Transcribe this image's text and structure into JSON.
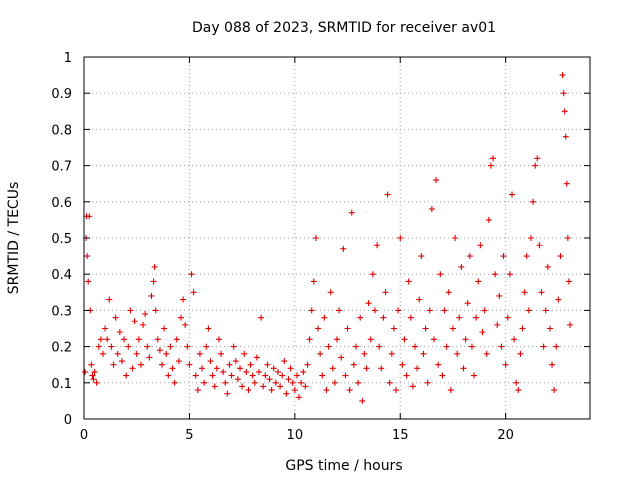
{
  "chart_data": {
    "type": "scatter",
    "title": "Day 088 of 2023, SRMTID for receiver av01",
    "xlabel": "GPS time / hours",
    "ylabel": "SRMTID / TECUs",
    "xlim": [
      0,
      24
    ],
    "ylim": [
      0,
      1
    ],
    "x_ticks": [
      0,
      5,
      10,
      15,
      20
    ],
    "y_ticks": [
      0,
      0.1,
      0.2,
      0.3,
      0.4,
      0.5,
      0.6,
      0.7,
      0.8,
      0.9,
      1
    ],
    "x_tick_labels": [
      "0",
      "5",
      "10",
      "15",
      "20"
    ],
    "y_tick_labels": [
      "0",
      "0.1",
      "0.2",
      "0.3",
      "0.4",
      "0.5",
      "0.6",
      "0.7",
      "0.8",
      "0.9",
      "1"
    ],
    "grid": true,
    "marker": "plus",
    "color": "#e00000",
    "series": [
      {
        "name": "SRMTID",
        "points": [
          [
            0.05,
            0.13
          ],
          [
            0.1,
            0.5
          ],
          [
            0.12,
            0.56
          ],
          [
            0.15,
            0.45
          ],
          [
            0.2,
            0.38
          ],
          [
            0.25,
            0.56
          ],
          [
            0.3,
            0.3
          ],
          [
            0.35,
            0.15
          ],
          [
            0.4,
            0.12
          ],
          [
            0.45,
            0.11
          ],
          [
            0.5,
            0.13
          ],
          [
            0.6,
            0.1
          ],
          [
            0.7,
            0.2
          ],
          [
            0.8,
            0.22
          ],
          [
            0.9,
            0.18
          ],
          [
            1.0,
            0.25
          ],
          [
            1.1,
            0.22
          ],
          [
            1.2,
            0.33
          ],
          [
            1.3,
            0.2
          ],
          [
            1.4,
            0.15
          ],
          [
            1.5,
            0.28
          ],
          [
            1.6,
            0.18
          ],
          [
            1.7,
            0.24
          ],
          [
            1.8,
            0.16
          ],
          [
            1.9,
            0.22
          ],
          [
            2.0,
            0.12
          ],
          [
            2.1,
            0.2
          ],
          [
            2.2,
            0.3
          ],
          [
            2.3,
            0.14
          ],
          [
            2.4,
            0.27
          ],
          [
            2.5,
            0.18
          ],
          [
            2.6,
            0.22
          ],
          [
            2.7,
            0.15
          ],
          [
            2.8,
            0.26
          ],
          [
            2.9,
            0.29
          ],
          [
            3.0,
            0.2
          ],
          [
            3.1,
            0.17
          ],
          [
            3.2,
            0.34
          ],
          [
            3.3,
            0.38
          ],
          [
            3.35,
            0.42
          ],
          [
            3.4,
            0.3
          ],
          [
            3.5,
            0.22
          ],
          [
            3.6,
            0.19
          ],
          [
            3.7,
            0.15
          ],
          [
            3.8,
            0.25
          ],
          [
            3.9,
            0.18
          ],
          [
            4.0,
            0.12
          ],
          [
            4.1,
            0.2
          ],
          [
            4.2,
            0.14
          ],
          [
            4.3,
            0.1
          ],
          [
            4.4,
            0.22
          ],
          [
            4.5,
            0.16
          ],
          [
            4.6,
            0.28
          ],
          [
            4.7,
            0.33
          ],
          [
            4.8,
            0.26
          ],
          [
            4.9,
            0.2
          ],
          [
            5.0,
            0.15
          ],
          [
            5.1,
            0.4
          ],
          [
            5.2,
            0.35
          ],
          [
            5.3,
            0.12
          ],
          [
            5.4,
            0.08
          ],
          [
            5.5,
            0.18
          ],
          [
            5.6,
            0.14
          ],
          [
            5.7,
            0.1
          ],
          [
            5.8,
            0.2
          ],
          [
            5.9,
            0.25
          ],
          [
            6.0,
            0.16
          ],
          [
            6.1,
            0.12
          ],
          [
            6.2,
            0.09
          ],
          [
            6.3,
            0.14
          ],
          [
            6.4,
            0.22
          ],
          [
            6.5,
            0.18
          ],
          [
            6.6,
            0.13
          ],
          [
            6.7,
            0.1
          ],
          [
            6.8,
            0.07
          ],
          [
            6.9,
            0.15
          ],
          [
            7.0,
            0.12
          ],
          [
            7.1,
            0.2
          ],
          [
            7.2,
            0.16
          ],
          [
            7.3,
            0.11
          ],
          [
            7.4,
            0.14
          ],
          [
            7.5,
            0.09
          ],
          [
            7.6,
            0.18
          ],
          [
            7.7,
            0.13
          ],
          [
            7.8,
            0.08
          ],
          [
            7.9,
            0.15
          ],
          [
            8.0,
            0.12
          ],
          [
            8.1,
            0.1
          ],
          [
            8.2,
            0.17
          ],
          [
            8.3,
            0.13
          ],
          [
            8.4,
            0.28
          ],
          [
            8.5,
            0.09
          ],
          [
            8.6,
            0.12
          ],
          [
            8.7,
            0.15
          ],
          [
            8.8,
            0.11
          ],
          [
            8.9,
            0.08
          ],
          [
            9.0,
            0.14
          ],
          [
            9.1,
            0.1
          ],
          [
            9.2,
            0.13
          ],
          [
            9.3,
            0.09
          ],
          [
            9.4,
            0.12
          ],
          [
            9.5,
            0.16
          ],
          [
            9.6,
            0.07
          ],
          [
            9.7,
            0.11
          ],
          [
            9.8,
            0.14
          ],
          [
            9.9,
            0.1
          ],
          [
            10.0,
            0.08
          ],
          [
            10.1,
            0.12
          ],
          [
            10.2,
            0.06
          ],
          [
            10.3,
            0.1
          ],
          [
            10.4,
            0.13
          ],
          [
            10.5,
            0.09
          ],
          [
            10.6,
            0.15
          ],
          [
            10.7,
            0.22
          ],
          [
            10.8,
            0.3
          ],
          [
            10.9,
            0.38
          ],
          [
            11.0,
            0.5
          ],
          [
            11.1,
            0.25
          ],
          [
            11.2,
            0.18
          ],
          [
            11.3,
            0.12
          ],
          [
            11.4,
            0.28
          ],
          [
            11.5,
            0.08
          ],
          [
            11.6,
            0.2
          ],
          [
            11.7,
            0.35
          ],
          [
            11.8,
            0.14
          ],
          [
            11.9,
            0.1
          ],
          [
            12.0,
            0.22
          ],
          [
            12.1,
            0.3
          ],
          [
            12.2,
            0.17
          ],
          [
            12.3,
            0.47
          ],
          [
            12.4,
            0.12
          ],
          [
            12.5,
            0.25
          ],
          [
            12.6,
            0.08
          ],
          [
            12.7,
            0.57
          ],
          [
            12.8,
            0.15
          ],
          [
            12.9,
            0.2
          ],
          [
            13.0,
            0.1
          ],
          [
            13.1,
            0.28
          ],
          [
            13.2,
            0.05
          ],
          [
            13.3,
            0.18
          ],
          [
            13.4,
            0.14
          ],
          [
            13.5,
            0.32
          ],
          [
            13.6,
            0.22
          ],
          [
            13.7,
            0.4
          ],
          [
            13.8,
            0.3
          ],
          [
            13.9,
            0.48
          ],
          [
            14.0,
            0.2
          ],
          [
            14.1,
            0.14
          ],
          [
            14.2,
            0.28
          ],
          [
            14.3,
            0.35
          ],
          [
            14.4,
            0.62
          ],
          [
            14.5,
            0.1
          ],
          [
            14.6,
            0.18
          ],
          [
            14.7,
            0.25
          ],
          [
            14.8,
            0.08
          ],
          [
            14.9,
            0.3
          ],
          [
            15.0,
            0.5
          ],
          [
            15.1,
            0.15
          ],
          [
            15.2,
            0.22
          ],
          [
            15.3,
            0.12
          ],
          [
            15.4,
            0.38
          ],
          [
            15.5,
            0.28
          ],
          [
            15.6,
            0.09
          ],
          [
            15.7,
            0.2
          ],
          [
            15.8,
            0.14
          ],
          [
            15.9,
            0.33
          ],
          [
            16.0,
            0.45
          ],
          [
            16.1,
            0.18
          ],
          [
            16.2,
            0.25
          ],
          [
            16.3,
            0.1
          ],
          [
            16.4,
            0.3
          ],
          [
            16.5,
            0.58
          ],
          [
            16.6,
            0.22
          ],
          [
            16.7,
            0.66
          ],
          [
            16.8,
            0.15
          ],
          [
            16.9,
            0.4
          ],
          [
            17.0,
            0.12
          ],
          [
            17.1,
            0.3
          ],
          [
            17.2,
            0.2
          ],
          [
            17.3,
            0.35
          ],
          [
            17.4,
            0.08
          ],
          [
            17.5,
            0.25
          ],
          [
            17.6,
            0.5
          ],
          [
            17.7,
            0.18
          ],
          [
            17.8,
            0.28
          ],
          [
            17.9,
            0.42
          ],
          [
            18.0,
            0.14
          ],
          [
            18.1,
            0.22
          ],
          [
            18.2,
            0.32
          ],
          [
            18.3,
            0.45
          ],
          [
            18.4,
            0.2
          ],
          [
            18.5,
            0.12
          ],
          [
            18.6,
            0.28
          ],
          [
            18.7,
            0.38
          ],
          [
            18.8,
            0.48
          ],
          [
            18.9,
            0.24
          ],
          [
            19.0,
            0.3
          ],
          [
            19.1,
            0.18
          ],
          [
            19.2,
            0.55
          ],
          [
            19.3,
            0.7
          ],
          [
            19.4,
            0.72
          ],
          [
            19.5,
            0.4
          ],
          [
            19.6,
            0.26
          ],
          [
            19.7,
            0.34
          ],
          [
            19.8,
            0.2
          ],
          [
            19.9,
            0.45
          ],
          [
            20.0,
            0.15
          ],
          [
            20.1,
            0.28
          ],
          [
            20.2,
            0.4
          ],
          [
            20.3,
            0.62
          ],
          [
            20.4,
            0.22
          ],
          [
            20.5,
            0.1
          ],
          [
            20.6,
            0.08
          ],
          [
            20.7,
            0.18
          ],
          [
            20.8,
            0.25
          ],
          [
            20.9,
            0.35
          ],
          [
            21.0,
            0.45
          ],
          [
            21.1,
            0.3
          ],
          [
            21.2,
            0.5
          ],
          [
            21.3,
            0.6
          ],
          [
            21.4,
            0.7
          ],
          [
            21.5,
            0.72
          ],
          [
            21.6,
            0.48
          ],
          [
            21.7,
            0.35
          ],
          [
            21.8,
            0.2
          ],
          [
            21.9,
            0.3
          ],
          [
            22.0,
            0.42
          ],
          [
            22.1,
            0.25
          ],
          [
            22.2,
            0.15
          ],
          [
            22.3,
            0.08
          ],
          [
            22.4,
            0.2
          ],
          [
            22.5,
            0.33
          ],
          [
            22.6,
            0.45
          ],
          [
            22.7,
            0.95
          ],
          [
            22.75,
            0.9
          ],
          [
            22.8,
            0.85
          ],
          [
            22.85,
            0.78
          ],
          [
            22.9,
            0.65
          ],
          [
            22.95,
            0.5
          ],
          [
            23.0,
            0.38
          ],
          [
            23.05,
            0.26
          ]
        ]
      }
    ]
  }
}
